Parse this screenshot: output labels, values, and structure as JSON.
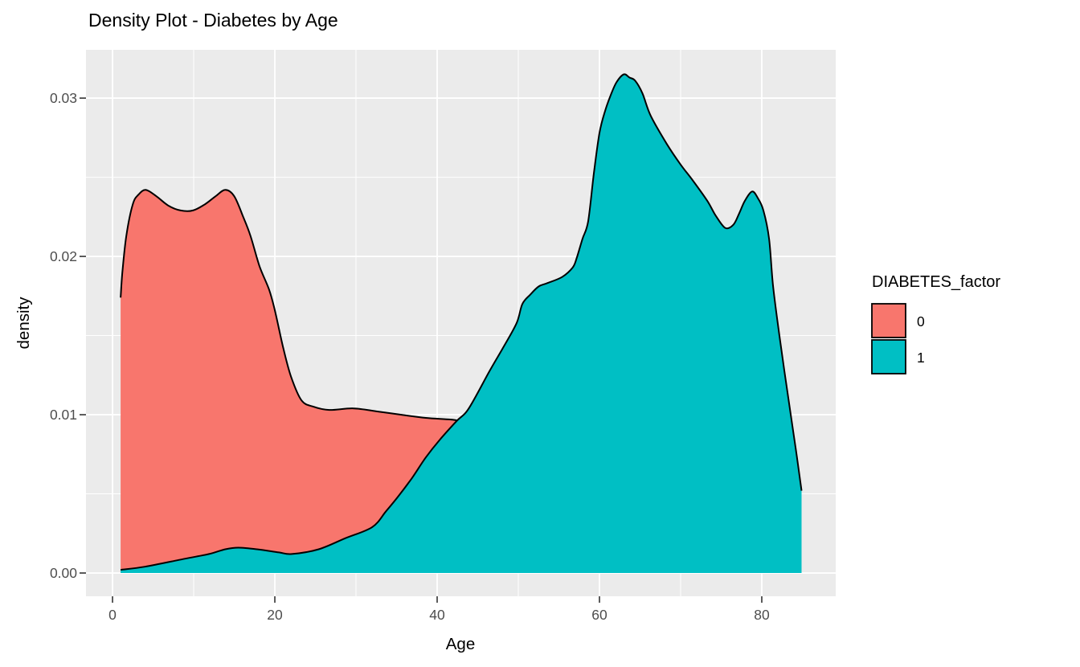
{
  "colors": {
    "panel_background": "#EBEBEB",
    "gridline": "#FFFFFF",
    "tick_mark": "#333333",
    "tick_label": "#4D4D4D",
    "outline": "#000000",
    "figure_background": "#FFFFFF"
  },
  "chart_data": {
    "type": "area",
    "subtype": "density",
    "title": "Density Plot - Diabetes by Age",
    "xlabel": "Age",
    "ylabel": "density",
    "legend_title": "DIABETES_factor",
    "legend_position": "right",
    "grid": "major-and-minor",
    "xlim": [
      -3.27,
      89.11
    ],
    "ylim": [
      -0.00147,
      0.03305
    ],
    "x_ticks": [
      {
        "value": 0,
        "label": "0"
      },
      {
        "value": 20,
        "label": "20"
      },
      {
        "value": 40,
        "label": "40"
      },
      {
        "value": 60,
        "label": "60"
      },
      {
        "value": 80,
        "label": "80"
      }
    ],
    "x_minor_ticks": [
      10,
      30,
      50,
      70
    ],
    "y_ticks": [
      {
        "value": 0.0,
        "label": "0.00"
      },
      {
        "value": 0.01,
        "label": "0.01"
      },
      {
        "value": 0.02,
        "label": "0.02"
      },
      {
        "value": 0.03,
        "label": "0.03"
      }
    ],
    "y_minor_ticks": [
      0.005,
      0.015,
      0.025
    ],
    "series": [
      {
        "name": "0",
        "color": "#F8766D",
        "outline": "#000000",
        "points": [
          [
            1.0,
            0.0174
          ],
          [
            1.2,
            0.0189
          ],
          [
            1.7,
            0.0213
          ],
          [
            2.5,
            0.0233
          ],
          [
            3.2,
            0.0239
          ],
          [
            4.1,
            0.0242
          ],
          [
            5.4,
            0.0238
          ],
          [
            6.9,
            0.0232
          ],
          [
            8.4,
            0.0229
          ],
          [
            9.9,
            0.0229
          ],
          [
            11.4,
            0.0233
          ],
          [
            12.7,
            0.0238
          ],
          [
            13.9,
            0.0242
          ],
          [
            15.0,
            0.0238
          ],
          [
            16.1,
            0.0225
          ],
          [
            17.0,
            0.0213
          ],
          [
            18.1,
            0.0194
          ],
          [
            19.3,
            0.0179
          ],
          [
            20.0,
            0.0166
          ],
          [
            21.0,
            0.0143
          ],
          [
            22.0,
            0.0124
          ],
          [
            23.3,
            0.0109
          ],
          [
            24.8,
            0.0105
          ],
          [
            26.7,
            0.0103
          ],
          [
            29.7,
            0.0104
          ],
          [
            32.7,
            0.0102
          ],
          [
            35.6,
            0.01
          ],
          [
            38.6,
            0.0098
          ],
          [
            41.6,
            0.0097
          ],
          [
            42.8,
            0.0096
          ],
          [
            45.0,
            0.0093
          ],
          [
            48.0,
            0.0088
          ],
          [
            52.0,
            0.0079
          ],
          [
            56.0,
            0.0068
          ],
          [
            60.0,
            0.0056
          ],
          [
            64.0,
            0.0045
          ],
          [
            68.0,
            0.0034
          ],
          [
            72.0,
            0.0025
          ],
          [
            76.0,
            0.0017
          ],
          [
            80.0,
            0.0011
          ]
        ]
      },
      {
        "name": "1",
        "color": "#00BFC4",
        "outline": "#000000",
        "points": [
          [
            1.0,
            0.0002
          ],
          [
            4.0,
            0.0004
          ],
          [
            8.9,
            0.0009
          ],
          [
            11.9,
            0.0012
          ],
          [
            13.9,
            0.0015
          ],
          [
            15.5,
            0.0016
          ],
          [
            17.8,
            0.0015
          ],
          [
            20.5,
            0.0013
          ],
          [
            22.1,
            0.0012
          ],
          [
            25.4,
            0.0015
          ],
          [
            28.7,
            0.0022
          ],
          [
            32.0,
            0.0029
          ],
          [
            33.7,
            0.0039
          ],
          [
            35.3,
            0.0049
          ],
          [
            36.9,
            0.006
          ],
          [
            38.6,
            0.0073
          ],
          [
            40.3,
            0.0084
          ],
          [
            42.4,
            0.0096
          ],
          [
            43.9,
            0.0104
          ],
          [
            46.5,
            0.0128
          ],
          [
            48.2,
            0.0143
          ],
          [
            49.8,
            0.0158
          ],
          [
            50.5,
            0.017
          ],
          [
            51.5,
            0.0176
          ],
          [
            52.5,
            0.0181
          ],
          [
            53.5,
            0.0183
          ],
          [
            55.4,
            0.0187
          ],
          [
            56.7,
            0.0193
          ],
          [
            57.2,
            0.0199
          ],
          [
            57.9,
            0.0211
          ],
          [
            58.6,
            0.0222
          ],
          [
            59.3,
            0.0252
          ],
          [
            60.0,
            0.0278
          ],
          [
            60.7,
            0.0292
          ],
          [
            61.4,
            0.0302
          ],
          [
            62.1,
            0.031
          ],
          [
            63.0,
            0.0315
          ],
          [
            63.7,
            0.0313
          ],
          [
            64.4,
            0.0311
          ],
          [
            65.3,
            0.0303
          ],
          [
            66.3,
            0.0289
          ],
          [
            68.3,
            0.0271
          ],
          [
            70.0,
            0.0258
          ],
          [
            71.5,
            0.0248
          ],
          [
            73.3,
            0.0235
          ],
          [
            74.3,
            0.0226
          ],
          [
            75.5,
            0.0218
          ],
          [
            76.5,
            0.022
          ],
          [
            77.2,
            0.0227
          ],
          [
            77.9,
            0.0235
          ],
          [
            78.8,
            0.0241
          ],
          [
            79.5,
            0.0237
          ],
          [
            80.2,
            0.0229
          ],
          [
            80.9,
            0.0211
          ],
          [
            81.4,
            0.0181
          ],
          [
            82.2,
            0.0149
          ],
          [
            83.2,
            0.0113
          ],
          [
            84.2,
            0.0078
          ],
          [
            84.9,
            0.0052
          ]
        ]
      }
    ]
  }
}
